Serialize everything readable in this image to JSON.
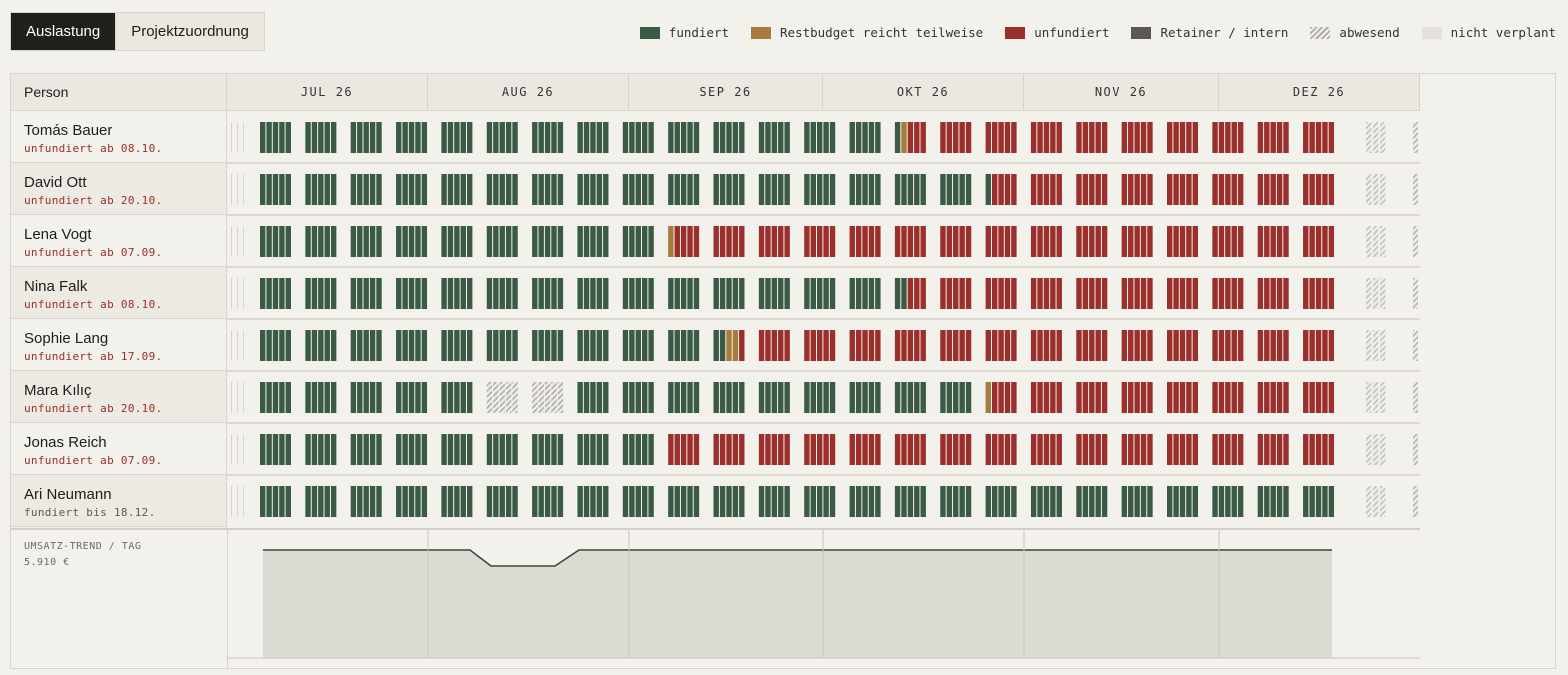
{
  "tabs": [
    {
      "label": "Auslastung",
      "active": true
    },
    {
      "label": "Projektzuordnung",
      "active": false
    }
  ],
  "legend": [
    {
      "label": "fundiert",
      "color": "#3a5a45",
      "pattern": "solid"
    },
    {
      "label": "Restbudget reicht teilweise",
      "color": "#a77c3c",
      "pattern": "solid"
    },
    {
      "label": "unfundiert",
      "color": "#9a2f2b",
      "pattern": "solid"
    },
    {
      "label": "Retainer / intern",
      "color": "#5c5953",
      "pattern": "solid"
    },
    {
      "label": "abwesend",
      "color": "#b5b2ab",
      "pattern": "hatch"
    },
    {
      "label": "nicht verplant",
      "color": "#e5e2dc",
      "pattern": "solid"
    }
  ],
  "header": {
    "person_label": "Person",
    "months": [
      "JUL 26",
      "AUG 26",
      "SEP 26",
      "OKT 26",
      "NOV 26",
      "DEZ 26"
    ]
  },
  "people": [
    {
      "name": "Tomás Bauer",
      "status": "unfundiert ab 08.10.",
      "status_type": "unfunded"
    },
    {
      "name": "David Ott",
      "status": "unfundiert ab 20.10.",
      "status_type": "unfunded"
    },
    {
      "name": "Lena Vogt",
      "status": "unfundiert ab 07.09.",
      "status_type": "unfunded"
    },
    {
      "name": "Nina Falk",
      "status": "unfundiert ab 08.10.",
      "status_type": "unfunded"
    },
    {
      "name": "Sophie Lang",
      "status": "unfundiert ab 17.09.",
      "status_type": "unfunded"
    },
    {
      "name": "Mara Kılıç",
      "status": "unfundiert ab 20.10.",
      "status_type": "unfunded"
    },
    {
      "name": "Jonas Reich",
      "status": "unfundiert ab 07.09.",
      "status_type": "unfunded"
    },
    {
      "name": "Ari Neumann",
      "status": "fundiert bis 18.12.",
      "status_type": "funded"
    }
  ],
  "trend": {
    "label": "UMSATZ-TREND / TAG",
    "value": "5.910 €"
  },
  "colors": {
    "funded": "#3a5a45",
    "partial": "#a77c3c",
    "unfunded": "#9a2f2b",
    "absent": "#b5b2ab",
    "unplanned": "#e5e2dc",
    "trend_fill": "#dcdbd3",
    "trend_line": "#2f4a3a"
  }
}
